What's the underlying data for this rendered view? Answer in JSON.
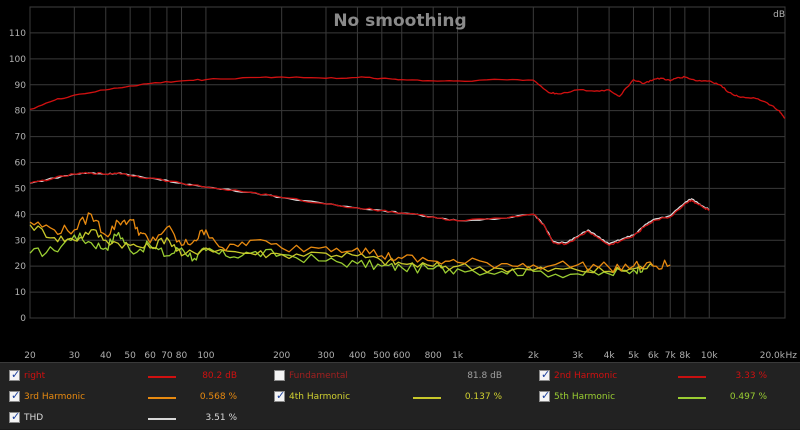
{
  "chart_data": {
    "type": "line",
    "title": "No smoothing",
    "y_unit": "dB",
    "x_unit": "Hz",
    "x_scale": "log",
    "xlim": [
      20,
      20000
    ],
    "ylim": [
      0,
      120
    ],
    "grid": true,
    "y_ticks": [
      "0",
      "10",
      "20",
      "30",
      "40",
      "50",
      "60",
      "70",
      "80",
      "90",
      "100",
      "110"
    ],
    "x_ticks": [
      {
        "v": 20,
        "label": "20"
      },
      {
        "v": 30,
        "label": "30"
      },
      {
        "v": 40,
        "label": "40"
      },
      {
        "v": 50,
        "label": "50"
      },
      {
        "v": 60,
        "label": "60"
      },
      {
        "v": 70,
        "label": "70"
      },
      {
        "v": 80,
        "label": "80"
      },
      {
        "v": 100,
        "label": "100"
      },
      {
        "v": 200,
        "label": "200"
      },
      {
        "v": 300,
        "label": "300"
      },
      {
        "v": 400,
        "label": "400"
      },
      {
        "v": 500,
        "label": "500"
      },
      {
        "v": 600,
        "label": "600"
      },
      {
        "v": 800,
        "label": "800"
      },
      {
        "v": 1000,
        "label": "1k"
      },
      {
        "v": 2000,
        "label": "2k"
      },
      {
        "v": 3000,
        "label": "3k"
      },
      {
        "v": 4000,
        "label": "4k"
      },
      {
        "v": 5000,
        "label": "5k"
      },
      {
        "v": 6000,
        "label": "6k"
      },
      {
        "v": 7000,
        "label": "7k"
      },
      {
        "v": 8000,
        "label": "8k"
      },
      {
        "v": 10000,
        "label": "10k"
      },
      {
        "v": 20000,
        "label": "20.0k"
      }
    ],
    "series": [
      {
        "name": "right",
        "color": "#d01010",
        "points": [
          [
            20,
            80.5
          ],
          [
            25,
            84
          ],
          [
            30,
            86
          ],
          [
            40,
            88
          ],
          [
            50,
            89.5
          ],
          [
            60,
            90.5
          ],
          [
            80,
            91.5
          ],
          [
            100,
            92
          ],
          [
            150,
            92.8
          ],
          [
            200,
            93
          ],
          [
            300,
            92.5
          ],
          [
            400,
            92.8
          ],
          [
            500,
            92.5
          ],
          [
            600,
            92
          ],
          [
            800,
            91.5
          ],
          [
            1000,
            91.5
          ],
          [
            1500,
            92
          ],
          [
            2000,
            91.8
          ],
          [
            2300,
            87
          ],
          [
            2500,
            86.5
          ],
          [
            3000,
            88
          ],
          [
            3500,
            87.5
          ],
          [
            4000,
            88
          ],
          [
            4400,
            85.5
          ],
          [
            5000,
            92
          ],
          [
            5500,
            90.5
          ],
          [
            6000,
            92
          ],
          [
            6500,
            92.5
          ],
          [
            7000,
            91.5
          ],
          [
            7500,
            92.8
          ],
          [
            8000,
            93
          ],
          [
            9000,
            91.5
          ],
          [
            10000,
            91.5
          ],
          [
            11000,
            90
          ],
          [
            12000,
            87
          ],
          [
            13000,
            85.5
          ],
          [
            15000,
            85
          ],
          [
            17000,
            83
          ],
          [
            19000,
            80
          ],
          [
            20000,
            77
          ]
        ]
      },
      {
        "name": "Fundamental",
        "color": "#c8c8c8",
        "visible": false,
        "points": []
      },
      {
        "name": "2nd Harmonic",
        "color": "#c81010",
        "points": [
          [
            20,
            52
          ],
          [
            25,
            54
          ],
          [
            30,
            55.5
          ],
          [
            35,
            56
          ],
          [
            40,
            55.5
          ],
          [
            45,
            56
          ],
          [
            50,
            55
          ],
          [
            60,
            54
          ],
          [
            80,
            52
          ],
          [
            100,
            50.5
          ],
          [
            150,
            48.5
          ],
          [
            200,
            46.5
          ],
          [
            300,
            44
          ],
          [
            400,
            42.5
          ],
          [
            500,
            41.5
          ],
          [
            600,
            40.5
          ],
          [
            800,
            39
          ],
          [
            1000,
            37.5
          ],
          [
            1500,
            38.5
          ],
          [
            2000,
            40
          ],
          [
            2200,
            36
          ],
          [
            2400,
            29
          ],
          [
            2700,
            28.5
          ],
          [
            3000,
            31
          ],
          [
            3300,
            33.5
          ],
          [
            3600,
            31
          ],
          [
            4000,
            28
          ],
          [
            4500,
            30
          ],
          [
            5000,
            31.5
          ],
          [
            5500,
            35
          ],
          [
            6000,
            37.5
          ],
          [
            7000,
            39
          ],
          [
            8000,
            44
          ],
          [
            8500,
            45.5
          ],
          [
            9000,
            44
          ],
          [
            9500,
            42.5
          ],
          [
            10000,
            41.5
          ]
        ]
      },
      {
        "name": "3rd Harmonic",
        "color": "#e88a10",
        "points": [
          [
            20,
            37
          ],
          [
            25,
            34
          ],
          [
            30,
            34
          ],
          [
            35,
            40
          ],
          [
            40,
            32
          ],
          [
            45,
            37
          ],
          [
            50,
            38
          ],
          [
            55,
            33
          ],
          [
            60,
            29
          ],
          [
            70,
            35
          ],
          [
            80,
            28
          ],
          [
            90,
            30
          ],
          [
            100,
            34
          ],
          [
            120,
            26
          ],
          [
            150,
            30
          ],
          [
            200,
            27
          ],
          [
            300,
            27.5
          ],
          [
            400,
            27
          ],
          [
            500,
            24
          ],
          [
            600,
            23
          ],
          [
            800,
            22
          ],
          [
            1000,
            21.5
          ],
          [
            1500,
            21
          ],
          [
            2000,
            20.5
          ],
          [
            3000,
            20.5
          ],
          [
            4000,
            19.5
          ],
          [
            5000,
            20
          ],
          [
            6000,
            20
          ],
          [
            7000,
            20.5
          ]
        ]
      },
      {
        "name": "4th Harmonic",
        "color": "#c8c82a",
        "points": [
          [
            20,
            36
          ],
          [
            25,
            31
          ],
          [
            30,
            30
          ],
          [
            35,
            34
          ],
          [
            40,
            30
          ],
          [
            50,
            28
          ],
          [
            60,
            27
          ],
          [
            70,
            31
          ],
          [
            80,
            24
          ],
          [
            100,
            27
          ],
          [
            150,
            25
          ],
          [
            200,
            24.5
          ],
          [
            300,
            25
          ],
          [
            400,
            24
          ],
          [
            500,
            22
          ],
          [
            600,
            21
          ],
          [
            800,
            20
          ],
          [
            1000,
            20
          ],
          [
            1500,
            19
          ],
          [
            2000,
            18.5
          ],
          [
            3000,
            18.5
          ],
          [
            4000,
            18
          ],
          [
            5000,
            19
          ],
          [
            6000,
            20
          ]
        ]
      },
      {
        "name": "5th Harmonic",
        "color": "#9acd32",
        "points": [
          [
            20,
            25
          ],
          [
            25,
            26
          ],
          [
            30,
            32
          ],
          [
            35,
            29
          ],
          [
            40,
            27
          ],
          [
            45,
            33
          ],
          [
            50,
            26
          ],
          [
            60,
            28
          ],
          [
            70,
            24
          ],
          [
            80,
            27
          ],
          [
            90,
            23
          ],
          [
            100,
            26
          ],
          [
            120,
            24
          ],
          [
            150,
            25
          ],
          [
            200,
            24.5
          ],
          [
            300,
            22
          ],
          [
            400,
            21
          ],
          [
            500,
            20
          ],
          [
            600,
            19.5
          ],
          [
            800,
            19
          ],
          [
            1000,
            19
          ],
          [
            1500,
            18
          ],
          [
            2000,
            18
          ],
          [
            3000,
            17
          ],
          [
            4000,
            17
          ],
          [
            5000,
            18.5
          ],
          [
            5500,
            20
          ]
        ]
      },
      {
        "name": "THD",
        "color": "#d8d8d8",
        "points": [
          [
            20,
            52
          ],
          [
            25,
            54
          ],
          [
            30,
            55.5
          ],
          [
            35,
            56
          ],
          [
            40,
            55.5
          ],
          [
            45,
            56
          ],
          [
            50,
            55
          ],
          [
            60,
            54
          ],
          [
            80,
            52
          ],
          [
            100,
            50.5
          ],
          [
            150,
            48.5
          ],
          [
            200,
            46.5
          ],
          [
            300,
            44
          ],
          [
            400,
            42.5
          ],
          [
            500,
            41.5
          ],
          [
            600,
            40.5
          ],
          [
            800,
            39
          ],
          [
            1000,
            37.5
          ],
          [
            1500,
            38.5
          ],
          [
            2000,
            40
          ],
          [
            2200,
            36
          ],
          [
            2400,
            29.5
          ],
          [
            2700,
            29
          ],
          [
            3000,
            31.5
          ],
          [
            3300,
            34
          ],
          [
            3600,
            31.5
          ],
          [
            4000,
            28.5
          ],
          [
            4500,
            30.5
          ],
          [
            5000,
            32
          ],
          [
            5500,
            35.5
          ],
          [
            6000,
            38
          ],
          [
            7000,
            39.5
          ],
          [
            8000,
            44.5
          ],
          [
            8500,
            46
          ],
          [
            9000,
            44.5
          ],
          [
            9500,
            43
          ],
          [
            10000,
            42
          ]
        ]
      }
    ]
  },
  "legend": [
    {
      "label": "right",
      "value": "80.2 dB",
      "checked": true,
      "color": "#d01010",
      "text_color": "#d01010",
      "value_color": "#d01010"
    },
    {
      "label": "Fundamental",
      "value": "81.8 dB",
      "checked": false,
      "color": "#d0d0d0",
      "text_color": "#a02020",
      "value_color": "#a0a0a0"
    },
    {
      "label": "2nd Harmonic",
      "value": "3.33 %",
      "checked": true,
      "color": "#c81010",
      "text_color": "#d01010",
      "value_color": "#d01010"
    },
    {
      "label": "3rd Harmonic",
      "value": "0.568 %",
      "checked": true,
      "color": "#e88a10",
      "text_color": "#e88a10",
      "value_color": "#e88a10"
    },
    {
      "label": "4th Harmonic",
      "value": "0.137 %",
      "checked": true,
      "color": "#c8c82a",
      "text_color": "#d0d030",
      "value_color": "#d0d030"
    },
    {
      "label": "5th Harmonic",
      "value": "0.497 %",
      "checked": true,
      "color": "#9acd32",
      "text_color": "#9acd32",
      "value_color": "#9acd32"
    },
    {
      "label": "THD",
      "value": "3.51 %",
      "checked": true,
      "color": "#d8d8d8",
      "text_color": "#d8d8d8",
      "value_color": "#d8d8d8"
    }
  ]
}
